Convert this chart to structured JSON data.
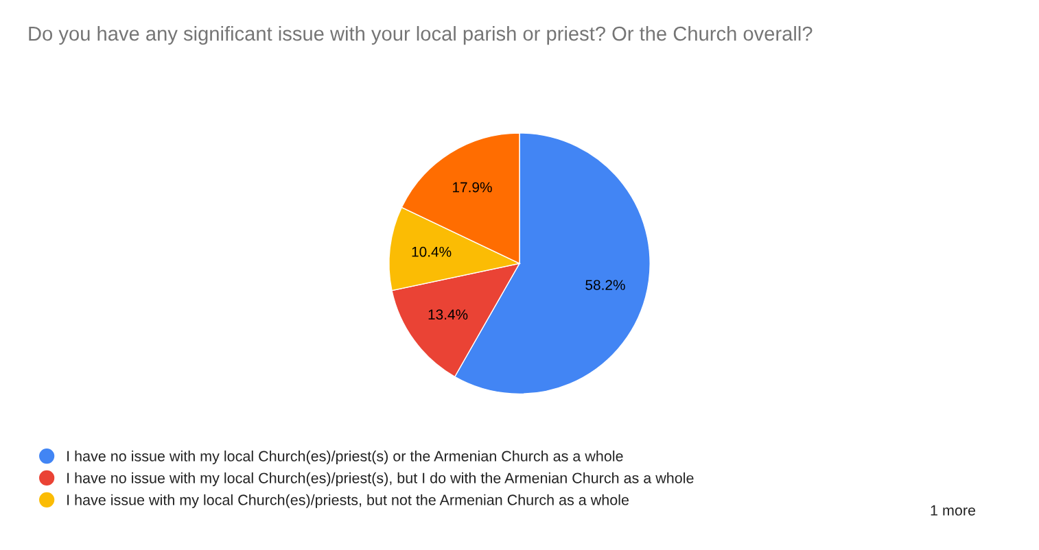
{
  "chart_data": {
    "type": "pie",
    "title": "Do you have any significant issue with your local parish or priest? Or the Church overall?",
    "categories": [
      "I have no issue with my local Church(es)/priest(s) or the Armenian Church as a whole",
      "I have no issue with my local Church(es)/priest(s), but I do with the Armenian Church as a whole",
      "I have issue with my local Church(es)/priests, but not the Armenian Church as a whole",
      null
    ],
    "values": [
      58.2,
      13.4,
      10.4,
      17.9
    ],
    "colors": [
      "#4285f4",
      "#ea4335",
      "#fbbc04",
      "#ff6d01"
    ],
    "value_labels": [
      "58.2%",
      "13.4%",
      "10.4%",
      "17.9%"
    ],
    "legend": "bottom",
    "annotations": [
      "1 more"
    ]
  }
}
